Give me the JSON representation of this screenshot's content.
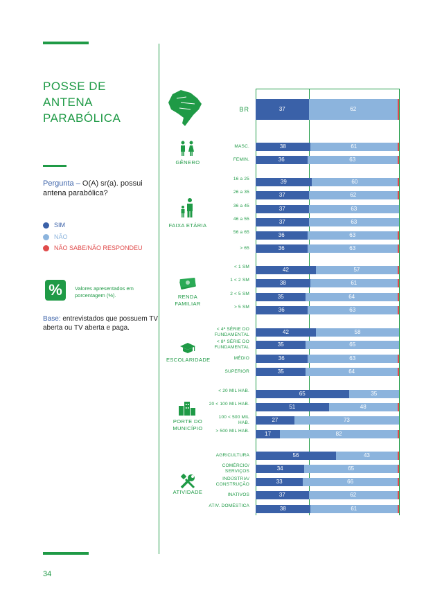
{
  "title": [
    "POSSE DE",
    "ANTENA",
    "PARABÓLICA"
  ],
  "question_label": "Pergunta –",
  "question_text": "O(A) sr(a). possui antena parabólica?",
  "legend": [
    {
      "label": "SIM",
      "color": "#3a61a8"
    },
    {
      "label": "NÃO",
      "color": "#8cb4dd"
    },
    {
      "label": "NÃO SABE/NÃO RESPONDEU",
      "color": "#e04b4b"
    }
  ],
  "percent_symbol": "%",
  "percent_note": "Valores apresentados em porcentagem (%).",
  "base_label": "Base:",
  "base_text": "entrevistados que possuem TV aberta ou TV aberta e paga.",
  "page_number": "34",
  "chart_data": {
    "type": "bar",
    "orientation": "horizontal",
    "stacked": true,
    "series_names": [
      "SIM",
      "NÃO",
      "NÃO SABE/NÃO RESPONDEU"
    ],
    "groups": [
      {
        "name": "",
        "icon": "brazil-map-icon",
        "rows": [
          {
            "label": "BR",
            "sim": 37,
            "nao": 62
          }
        ]
      },
      {
        "name": "GÊNERO",
        "icon": "gender-icon",
        "rows": [
          {
            "label": "MASC.",
            "sim": 38,
            "nao": 61
          },
          {
            "label": "FEMIN.",
            "sim": 36,
            "nao": 63
          }
        ]
      },
      {
        "name": "FAIXA ETÁRIA",
        "icon": "age-icon",
        "rows": [
          {
            "label": "16 a 25",
            "sim": 39,
            "nao": 60
          },
          {
            "label": "26 a 35",
            "sim": 37,
            "nao": 62
          },
          {
            "label": "36 a 45",
            "sim": 37,
            "nao": 63
          },
          {
            "label": "46 a 55",
            "sim": 37,
            "nao": 63
          },
          {
            "label": "56 a 65",
            "sim": 36,
            "nao": 63
          },
          {
            "label": "> 65",
            "sim": 36,
            "nao": 63
          }
        ]
      },
      {
        "name": "RENDA FAMILIAR",
        "icon": "money-icon",
        "rows": [
          {
            "label": "< 1 SM",
            "sim": 42,
            "nao": 57
          },
          {
            "label": "1 < 2 SM",
            "sim": 38,
            "nao": 61
          },
          {
            "label": "2 < 5 SM",
            "sim": 35,
            "nao": 64
          },
          {
            "label": "> 5 SM",
            "sim": 36,
            "nao": 63
          }
        ]
      },
      {
        "name": "ESCOLARIDADE",
        "icon": "graduation-cap-icon",
        "rows": [
          {
            "label": "< 4ª SÉRIE DO FUNDAMENTAL",
            "sim": 42,
            "nao": 58
          },
          {
            "label": "< 8ª SÉRIE DO FUNDAMENTAL",
            "sim": 35,
            "nao": 65
          },
          {
            "label": "MÉDIO",
            "sim": 36,
            "nao": 63
          },
          {
            "label": "SUPERIOR",
            "sim": 35,
            "nao": 64
          }
        ]
      },
      {
        "name": "PORTE DO MUNICÍPIO",
        "icon": "buildings-icon",
        "rows": [
          {
            "label": "< 20 MIL HAB.",
            "sim": 65,
            "nao": 35
          },
          {
            "label": "20 < 100 MIL HAB.",
            "sim": 51,
            "nao": 48
          },
          {
            "label": "100 < 500 MIL HAB.",
            "sim": 27,
            "nao": 73
          },
          {
            "label": "> 500 MIL HAB.",
            "sim": 17,
            "nao": 82
          }
        ]
      },
      {
        "name": "ATIVIDADE",
        "icon": "tools-icon",
        "rows": [
          {
            "label": "AGRICULTURA",
            "sim": 56,
            "nao": 43
          },
          {
            "label": "COMÉRCIO/ SERVIÇOS",
            "sim": 34,
            "nao": 65
          },
          {
            "label": "INDÚSTRIA/ CONSTRUÇÃO",
            "sim": 33,
            "nao": 66
          },
          {
            "label": "INATIVOS",
            "sim": 37,
            "nao": 62
          },
          {
            "label": "ATIV. DOMÉSTICA",
            "sim": 38,
            "nao": 61
          }
        ]
      }
    ]
  }
}
